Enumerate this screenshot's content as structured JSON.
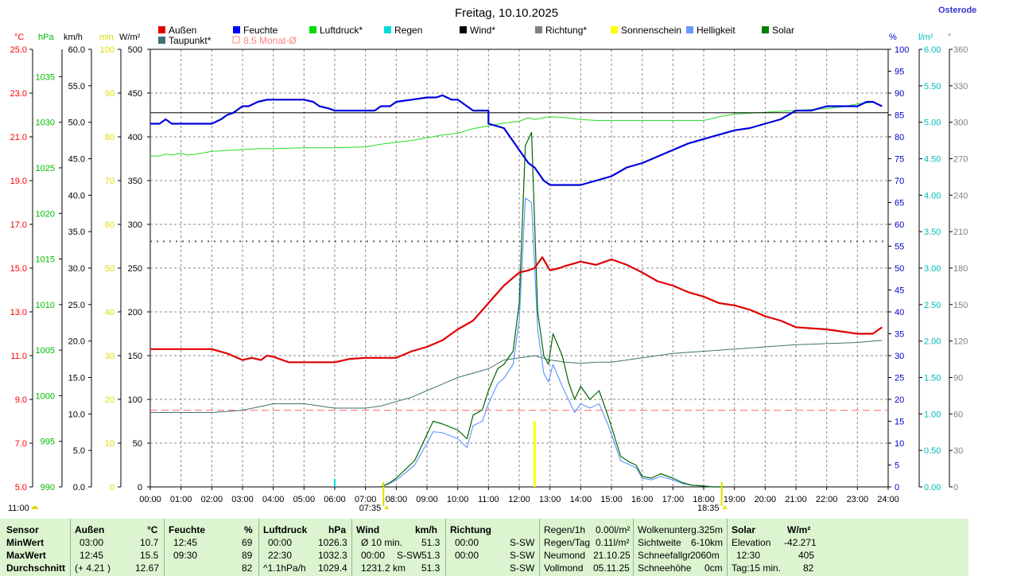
{
  "title": "Freitag, 10.10.2025",
  "location_link": "Osterode",
  "legend": [
    {
      "label": "Außen",
      "color": "#e00000",
      "style": "box"
    },
    {
      "label": "Feuchte",
      "color": "#0000ff",
      "style": "box"
    },
    {
      "label": "Luftdruck*",
      "color": "#00dd00",
      "style": "box"
    },
    {
      "label": "Regen",
      "color": "#00dddd",
      "style": "box"
    },
    {
      "label": "Wind*",
      "color": "#000000",
      "style": "box"
    },
    {
      "label": "Richtung*",
      "color": "#808080",
      "style": "box"
    },
    {
      "label": "Sonnenschein",
      "color": "#ffff00",
      "style": "box"
    },
    {
      "label": "Helligkeit",
      "color": "#6699ff",
      "style": "box"
    },
    {
      "label": "Solar",
      "color": "#008000",
      "style": "box"
    },
    {
      "label": "Taupunkt*",
      "color": "#407070",
      "style": "box"
    },
    {
      "label": "8.5 Monat-Ø",
      "color": "#ff8080",
      "style": "outline"
    }
  ],
  "axes_units": {
    "temp": "°C",
    "pressure": "hPa",
    "wind": "km/h",
    "sun": "min",
    "solar": "W/m²",
    "humidity": "%",
    "rain": "l/m²",
    "direction": "°"
  },
  "axes_colors": {
    "temp": "#ff0000",
    "pressure": "#00bb00",
    "wind": "#000000",
    "sun": "#dddd00",
    "solar": "#000000",
    "humidity": "#0000cc",
    "rain": "#00bbbb",
    "direction": "#808080"
  },
  "axes_ticks": {
    "temp": [
      "5.0",
      "7.0",
      "9.0",
      "11.0",
      "13.0",
      "15.0",
      "17.0",
      "19.0",
      "21.0",
      "23.0",
      "25.0"
    ],
    "pressure": [
      "990",
      "995",
      "1000",
      "1005",
      "1010",
      "1015",
      "1020",
      "1025",
      "1030",
      "1035"
    ],
    "wind": [
      "0.0",
      "5.0",
      "10.0",
      "15.0",
      "20.0",
      "25.0",
      "30.0",
      "35.0",
      "40.0",
      "45.0",
      "50.0",
      "55.0",
      "60.0"
    ],
    "sun": [
      "0",
      "10",
      "20",
      "30",
      "40",
      "50",
      "60",
      "70",
      "80",
      "90",
      "100"
    ],
    "solar": [
      "0",
      "50",
      "100",
      "150",
      "200",
      "250",
      "300",
      "350",
      "400",
      "450",
      "500"
    ],
    "humidity": [
      "0",
      "5",
      "10",
      "15",
      "20",
      "25",
      "30",
      "35",
      "40",
      "45",
      "50",
      "55",
      "60",
      "65",
      "70",
      "75",
      "80",
      "85",
      "90",
      "95",
      "100"
    ],
    "rain": [
      "0.00",
      "0.50",
      "1.00",
      "1.50",
      "2.00",
      "2.50",
      "3.00",
      "3.50",
      "4.00",
      "4.50",
      "5.00",
      "5.50",
      "6.00"
    ],
    "direction": [
      "0",
      "30",
      "60",
      "90",
      "120",
      "150",
      "180",
      "210",
      "240",
      "270",
      "300",
      "330",
      "360"
    ],
    "time": [
      "00:00",
      "01:00",
      "02:00",
      "03:00",
      "04:00",
      "05:00",
      "06:00",
      "07:00",
      "08:00",
      "09:00",
      "10:00",
      "11:00",
      "12:00",
      "13:00",
      "14:00",
      "15:00",
      "16:00",
      "17:00",
      "18:00",
      "19:00",
      "20:00",
      "21:00",
      "22:00",
      "23:00",
      "24:00"
    ]
  },
  "events": {
    "sunrise": "07:35",
    "sunset": "18:35",
    "side_label": "11:00"
  },
  "chart_data": {
    "type": "line",
    "x_unit": "hours",
    "xlim": [
      0,
      24
    ],
    "series": [
      {
        "name": "Außen",
        "color": "#e00000",
        "axis": "temp",
        "ylim": [
          5,
          25
        ],
        "width": 2.2,
        "x": [
          0,
          2,
          2.5,
          3,
          3.3,
          3.6,
          3.8,
          4,
          4.5,
          5,
          6,
          6.5,
          7,
          8,
          8.5,
          9,
          9.5,
          10,
          10.5,
          11,
          11.5,
          12,
          12.3,
          12.5,
          12.75,
          13,
          13.3,
          13.5,
          14,
          14.5,
          15,
          15.5,
          16,
          16.5,
          17,
          17.5,
          18,
          18.5,
          19,
          19.5,
          20,
          20.5,
          21,
          22,
          23,
          23.5,
          23.8
        ],
        "y": [
          11.3,
          11.3,
          11.1,
          10.8,
          10.9,
          10.8,
          11.0,
          10.95,
          10.7,
          10.7,
          10.7,
          10.85,
          10.9,
          10.9,
          11.2,
          11.4,
          11.7,
          12.2,
          12.6,
          13.4,
          14.2,
          14.8,
          14.9,
          15.0,
          15.5,
          14.9,
          15.0,
          15.1,
          15.3,
          15.15,
          15.4,
          15.15,
          14.8,
          14.4,
          14.2,
          13.9,
          13.7,
          13.4,
          13.3,
          13.1,
          12.8,
          12.6,
          12.3,
          12.2,
          12.0,
          12.0,
          12.3
        ]
      },
      {
        "name": "Feuchte",
        "color": "#0000dd",
        "axis": "humidity",
        "ylim": [
          0,
          100
        ],
        "width": 2.2,
        "x": [
          0,
          0.3,
          0.5,
          0.7,
          2,
          2.3,
          2.5,
          2.7,
          3,
          3.2,
          3.5,
          3.8,
          4,
          5,
          5.3,
          5.5,
          5.8,
          6,
          7,
          7.3,
          7.5,
          7.8,
          8,
          8.5,
          9,
          9.3,
          9.5,
          9.8,
          10,
          10.5,
          11,
          11,
          11.5,
          12,
          12.3,
          12.5,
          12.8,
          13,
          13.3,
          13.5,
          14,
          14.5,
          15,
          15.5,
          16,
          16.5,
          17,
          17.5,
          18,
          18.5,
          19,
          19.5,
          20,
          20.5,
          21,
          21.5,
          22,
          23,
          23.3,
          23.5,
          23.8
        ],
        "y": [
          83,
          83,
          84,
          83,
          83,
          84,
          85,
          85.5,
          87,
          87,
          88,
          88.5,
          88.5,
          88.5,
          88,
          87,
          86.5,
          86,
          86,
          86,
          87,
          87,
          88,
          88.5,
          89,
          89,
          89.5,
          88.5,
          88.5,
          86,
          86,
          83,
          82,
          77,
          74,
          73,
          70,
          69,
          69,
          69,
          69,
          70,
          71,
          73,
          74,
          75.5,
          77,
          78.5,
          79.5,
          80.5,
          81.5,
          82,
          83,
          84,
          86,
          86,
          87,
          87,
          88,
          88,
          87
        ]
      },
      {
        "name": "Luftdruck",
        "color": "#22dd22",
        "axis": "pressure",
        "ylim": [
          990,
          1038
        ],
        "width": 1,
        "x": [
          0,
          0.3,
          0.5,
          0.7,
          1,
          1.2,
          1.5,
          2,
          3,
          3.5,
          4,
          5,
          6,
          7,
          7.5,
          8,
          8.5,
          9,
          9.5,
          10,
          10.5,
          11,
          11.5,
          12,
          12.3,
          12.5,
          12.8,
          13,
          13.5,
          14,
          14.5,
          15,
          16,
          17,
          18,
          18.5,
          19,
          19.5,
          20,
          21,
          22,
          22.5,
          23,
          23.5,
          23.8
        ],
        "y": [
          1026.3,
          1026.3,
          1026.5,
          1026.4,
          1026.6,
          1026.4,
          1026.5,
          1026.8,
          1027,
          1027.1,
          1027.1,
          1027.2,
          1027.2,
          1027.3,
          1027.6,
          1027.8,
          1028.0,
          1028.3,
          1028.6,
          1028.8,
          1029.3,
          1029.6,
          1029.9,
          1030.1,
          1030.5,
          1030.3,
          1030.5,
          1030.6,
          1030.5,
          1030.3,
          1030.2,
          1030.2,
          1030.2,
          1030.2,
          1030.2,
          1030.6,
          1030.9,
          1031.0,
          1031.1,
          1031.3,
          1031.5,
          1031.7,
          1032.0,
          1032.2,
          1031.8
        ]
      },
      {
        "name": "Taupunkt",
        "color": "#407070",
        "axis": "temp",
        "ylim": [
          5,
          25
        ],
        "width": 1,
        "x": [
          0,
          1,
          2,
          3,
          4,
          5,
          5.5,
          6,
          7,
          7.5,
          8,
          8.5,
          9,
          9.5,
          10,
          10.5,
          11,
          11.5,
          12,
          12.3,
          12.5,
          12.75,
          13,
          13.5,
          14,
          14.5,
          15,
          15.5,
          16,
          17,
          18,
          19,
          20,
          21,
          22,
          23,
          23.8
        ],
        "y": [
          8.4,
          8.4,
          8.4,
          8.5,
          8.8,
          8.8,
          8.7,
          8.6,
          8.6,
          8.7,
          8.9,
          9.1,
          9.4,
          9.7,
          10.0,
          10.2,
          10.4,
          10.8,
          10.9,
          10.95,
          11.0,
          10.9,
          10.8,
          10.7,
          10.65,
          10.7,
          10.7,
          10.8,
          10.9,
          11.1,
          11.2,
          11.3,
          11.4,
          11.5,
          11.55,
          11.6,
          11.7
        ]
      },
      {
        "name": "Solar",
        "color": "#006600",
        "axis": "solar",
        "ylim": [
          0,
          500
        ],
        "width": 1.2,
        "x": [
          7.5,
          7.8,
          8,
          8.3,
          8.6,
          9,
          9.2,
          9.5,
          10,
          10.3,
          10.5,
          10.8,
          11,
          11.3,
          11.5,
          11.8,
          12,
          12.2,
          12.4,
          12.6,
          12.8,
          12.95,
          13.1,
          13.4,
          13.6,
          13.8,
          14,
          14.3,
          14.6,
          14.9,
          15.3,
          15.6,
          15.8,
          16,
          16.3,
          16.6,
          17,
          17.3,
          17.6,
          18,
          18.3,
          18.5,
          18.7
        ],
        "y": [
          0,
          5,
          10,
          20,
          30,
          60,
          75,
          72,
          65,
          55,
          82,
          88,
          110,
          135,
          140,
          155,
          210,
          390,
          405,
          200,
          150,
          140,
          175,
          150,
          120,
          100,
          115,
          100,
          110,
          80,
          35,
          28,
          25,
          12,
          10,
          15,
          10,
          5,
          2,
          1,
          0,
          0,
          0
        ]
      },
      {
        "name": "Helligkeit",
        "color": "#6699ff",
        "axis": "solar",
        "ylim": [
          0,
          500
        ],
        "width": 1.2,
        "x": [
          7.5,
          7.8,
          8,
          8.3,
          8.6,
          9,
          9.2,
          9.5,
          10,
          10.3,
          10.5,
          10.8,
          11,
          11.3,
          11.5,
          11.8,
          12,
          12.2,
          12.4,
          12.6,
          12.8,
          12.95,
          13.1,
          13.4,
          13.6,
          13.8,
          14,
          14.3,
          14.6,
          14.9,
          15.3,
          15.6,
          15.8,
          16,
          16.3,
          16.6,
          17,
          17.3,
          17.6,
          18,
          18.3,
          18.5,
          18.7
        ],
        "y": [
          0,
          4,
          8,
          16,
          25,
          50,
          63,
          62,
          55,
          45,
          70,
          75,
          95,
          118,
          124,
          140,
          190,
          330,
          325,
          180,
          130,
          120,
          140,
          115,
          100,
          85,
          95,
          90,
          95,
          70,
          30,
          25,
          22,
          10,
          8,
          12,
          8,
          4,
          2,
          1,
          0,
          0,
          0
        ]
      },
      {
        "name": "Wind",
        "color": "#000000",
        "axis": "wind",
        "ylim": [
          0,
          60
        ],
        "width": 1,
        "x": [
          0,
          24
        ],
        "y": [
          51.3,
          51.3
        ]
      }
    ],
    "markers": [
      {
        "name": "Sonnenschein",
        "color": "#ffff00",
        "axis": "sun",
        "x": 12.5,
        "y": 15
      },
      {
        "name": "Regen",
        "color": "#00dddd",
        "axis": "rain",
        "x": 6.0,
        "y": 0.08
      }
    ],
    "reference_lines": [
      {
        "name": "8.5 Monat-Ø",
        "color": "#ff6060",
        "axis": "temp",
        "y": 8.5,
        "style": "dash"
      },
      {
        "name": "Richtung",
        "color": "#606060",
        "axis": "direction",
        "y": 202,
        "style": "dot"
      }
    ]
  },
  "stats": {
    "headers": {
      "sensor": "Sensor",
      "minwert": "MinWert",
      "maxwert": "MaxWert",
      "durchschnitt": "Durchschnitt"
    },
    "aussen": {
      "title": "Außen",
      "unit": "°C",
      "min_time": "03:00",
      "min": "10.7",
      "max_time": "12:45",
      "max": "15.5",
      "avg_note": "(+ 4.21 )",
      "avg": "12.67"
    },
    "feuchte": {
      "title": "Feuchte",
      "unit": "%",
      "min_time": "12:45",
      "min": "69",
      "max_time": "09:30",
      "max": "89",
      "avg": "82"
    },
    "luftdruck": {
      "title": "Luftdruck",
      "unit": "hPa",
      "min_time": "00:00",
      "min": "1026.3",
      "max_time": "22:30",
      "max": "1032.3",
      "avg_note": "^1.1hPa/h",
      "avg": "1029.4"
    },
    "wind": {
      "title": "Wind",
      "unit": "km/h",
      "min_label": "Ø 10 min.",
      "min": "51.3",
      "max_time": "00:00",
      "max_dir": "S-SW",
      "max": "51.3",
      "avg_note": "1231.2 km",
      "avg": "51.3"
    },
    "richtung": {
      "title": "Richtung",
      "min_time": "00:00",
      "min": "S-SW",
      "max_time": "00:00",
      "max": "S-SW",
      "avg": "S-SW"
    },
    "regen": {
      "r1_label": "Regen/1h",
      "r1": "0.00l/m²",
      "r2_label": "Regen/Tag",
      "r2": "0.11l/m²",
      "r3_label": "Neumond",
      "r3": "21.10.25",
      "r4_label": "Vollmond",
      "r4": "05.11.25"
    },
    "wolken": {
      "r1_label": "Wolkenunterg.",
      "r1": "325m",
      "r2_label": "Sichtweite",
      "r2": "6-10km",
      "r3_label": "Schneefallgr.",
      "r3": "2060m",
      "r4_label": "Schneehöhe",
      "r4": "0cm"
    },
    "solar": {
      "title": "Solar",
      "unit": "W/m²",
      "r1_label": "Elevation",
      "r1": "-42.271",
      "r2_time": "12:30",
      "r2": "405",
      "r3_label": "Tag:15 min.",
      "r3": "82"
    }
  }
}
